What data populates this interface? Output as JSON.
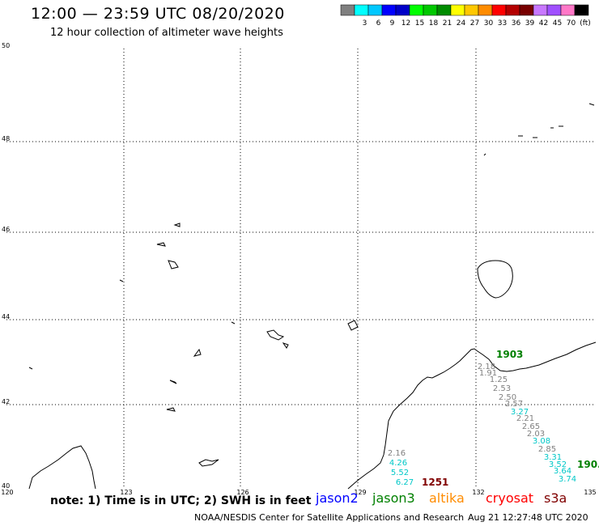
{
  "title": "12:00 — 23:59 UTC 08/20/2020",
  "subtitle": "12 hour collection of altimeter wave heights",
  "colorbar": {
    "unit": "(ft)",
    "segments": [
      {
        "color": "#808080",
        "label": ""
      },
      {
        "color": "#00ffff",
        "label": "3"
      },
      {
        "color": "#00c8ff",
        "label": "6"
      },
      {
        "color": "#0000ff",
        "label": "9"
      },
      {
        "color": "#0000c8",
        "label": "12"
      },
      {
        "color": "#00ff00",
        "label": "15"
      },
      {
        "color": "#00c800",
        "label": "18"
      },
      {
        "color": "#008c00",
        "label": "21"
      },
      {
        "color": "#ffff00",
        "label": "24"
      },
      {
        "color": "#ffc800",
        "label": "27"
      },
      {
        "color": "#ff8c00",
        "label": "30"
      },
      {
        "color": "#ff0000",
        "label": "33"
      },
      {
        "color": "#b40000",
        "label": "36"
      },
      {
        "color": "#780000",
        "label": "39"
      },
      {
        "color": "#c878ff",
        "label": "42"
      },
      {
        "color": "#a050ff",
        "label": "45"
      },
      {
        "color": "#ff78c8",
        "label": "70"
      },
      {
        "color": "#000000",
        "label": ""
      }
    ]
  },
  "axes": {
    "lat_labels": [
      "50",
      "48",
      "46",
      "44",
      "42",
      "40"
    ],
    "lon_labels": [
      "120",
      "123",
      "126",
      "129",
      "132",
      "135"
    ]
  },
  "station_labels": [
    {
      "text": "1903",
      "color": "#008000"
    },
    {
      "text": "190.",
      "color": "#008000"
    },
    {
      "text": "1251",
      "color": "#800000"
    }
  ],
  "track_east": [
    {
      "text": "2.18",
      "color": "#808080"
    },
    {
      "text": "1.91",
      "color": "#808080"
    },
    {
      "text": "1.25",
      "color": "#808080"
    },
    {
      "text": "2.53",
      "color": "#808080"
    },
    {
      "text": "2.50",
      "color": "#808080"
    },
    {
      "text": "2.57",
      "color": "#808080"
    },
    {
      "text": "3.27",
      "color": "#00c8c8"
    },
    {
      "text": "2.21",
      "color": "#808080"
    },
    {
      "text": "2.65",
      "color": "#808080"
    },
    {
      "text": "2.03",
      "color": "#808080"
    },
    {
      "text": "3.08",
      "color": "#00c8c8"
    },
    {
      "text": "2.85",
      "color": "#808080"
    },
    {
      "text": "3.31",
      "color": "#00c8c8"
    },
    {
      "text": "3.52",
      "color": "#00c8c8"
    },
    {
      "text": "3.64",
      "color": "#00c8c8"
    },
    {
      "text": "3.74",
      "color": "#00c8c8"
    }
  ],
  "track_west": [
    {
      "text": "2.16",
      "color": "#808080"
    },
    {
      "text": "4.26",
      "color": "#00c8c8"
    },
    {
      "text": "5.52",
      "color": "#00c8c8"
    },
    {
      "text": "6.27",
      "color": "#00c8c8"
    }
  ],
  "note": "note: 1) Time is in UTC; 2) SWH is in feet",
  "satellites": [
    {
      "name": "jason2",
      "color": "#0000ff"
    },
    {
      "name": "jason3",
      "color": "#008000"
    },
    {
      "name": "altika",
      "color": "#ff8c00"
    },
    {
      "name": "cryosat",
      "color": "#ff0000"
    },
    {
      "name": "s3a",
      "color": "#800000"
    }
  ],
  "credit": "NOAA/NESDIS Center for Satellite Applications and Research",
  "timestamp": "Aug 21 12:27:48 UTC 2020"
}
